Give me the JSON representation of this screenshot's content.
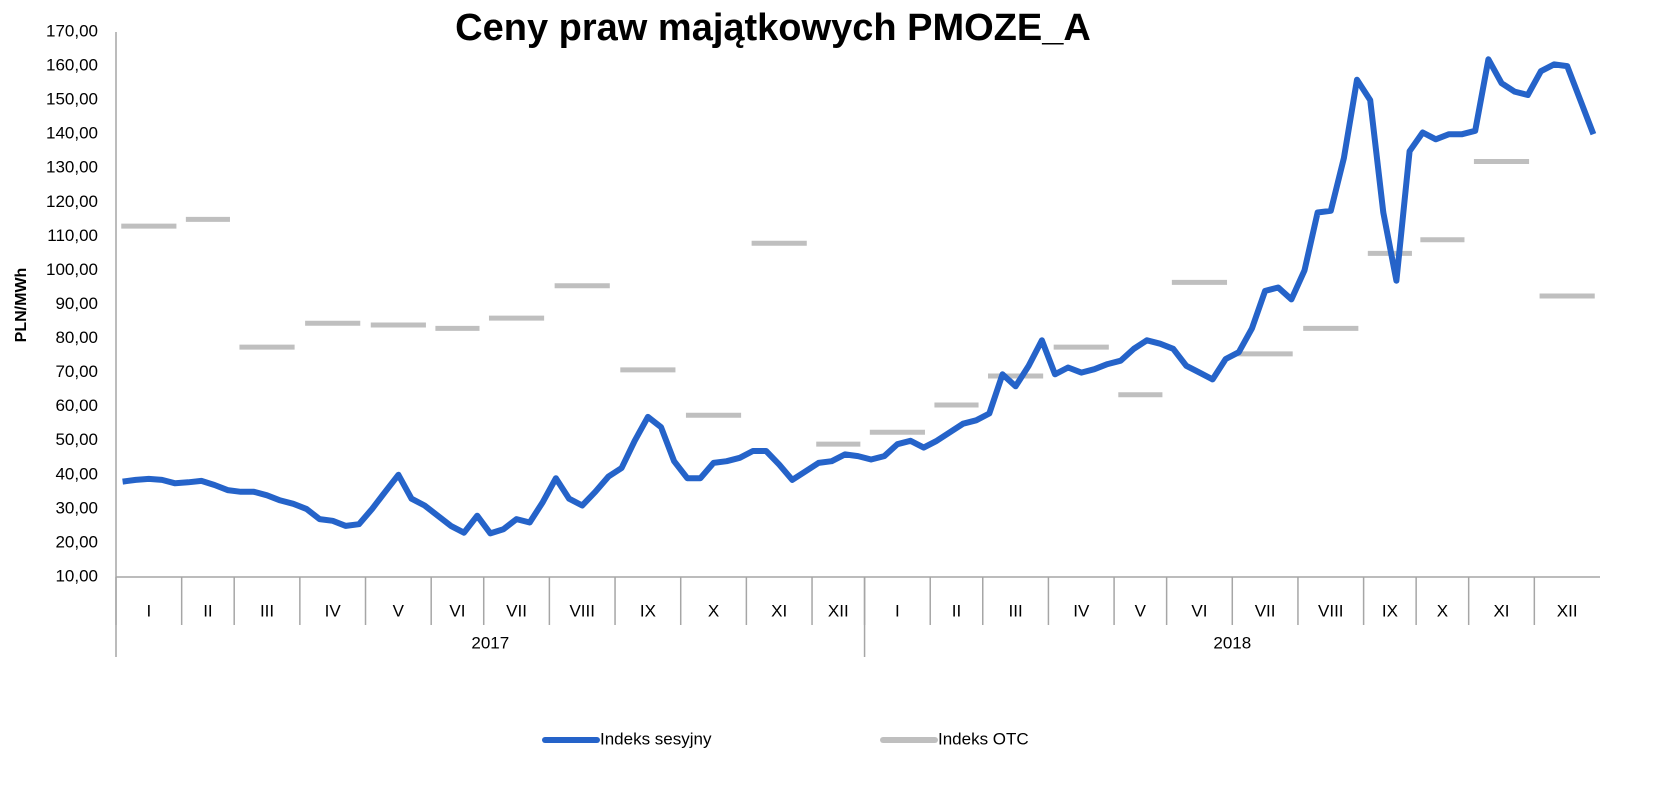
{
  "chart_data": {
    "type": "line",
    "title": "Ceny praw majątkowych PMOZE_A",
    "y_label": "PLN/MWh",
    "ylim": [
      10,
      170
    ],
    "yticks": [
      {
        "value": 10,
        "label": "10,00"
      },
      {
        "value": 20,
        "label": "20,00"
      },
      {
        "value": 30,
        "label": "30,00"
      },
      {
        "value": 40,
        "label": "40,00"
      },
      {
        "value": 50,
        "label": "50,00"
      },
      {
        "value": 60,
        "label": "60,00"
      },
      {
        "value": 70,
        "label": "70,00"
      },
      {
        "value": 80,
        "label": "80,00"
      },
      {
        "value": 90,
        "label": "90,00"
      },
      {
        "value": 100,
        "label": "100,00"
      },
      {
        "value": 110,
        "label": "110,00"
      },
      {
        "value": 120,
        "label": "120,00"
      },
      {
        "value": 130,
        "label": "130,00"
      },
      {
        "value": 140,
        "label": "140,00"
      },
      {
        "value": 150,
        "label": "150,00"
      },
      {
        "value": 160,
        "label": "160,00"
      },
      {
        "value": 170,
        "label": "170,00"
      }
    ],
    "grid": false,
    "series": [
      {
        "name": "Indeks sesyjny",
        "color": "#2563c9"
      },
      {
        "name": "Indeks OTC",
        "color": "#bfbfbf"
      }
    ],
    "years": [
      {
        "label": "2017",
        "months": [
          {
            "label": "I",
            "sesyjny": [
              38,
              38.5,
              38.8,
              38.5,
              37.5
            ],
            "otc": 113
          },
          {
            "label": "II",
            "sesyjny": [
              37.8,
              38.2,
              37,
              35.5
            ],
            "otc": 115
          },
          {
            "label": "III",
            "sesyjny": [
              35,
              35,
              34,
              32.5,
              31.5
            ],
            "otc": 77.5
          },
          {
            "label": "IV",
            "sesyjny": [
              30,
              27,
              26.5,
              25,
              25.5
            ],
            "otc": 84.5
          },
          {
            "label": "V",
            "sesyjny": [
              30,
              35,
              40,
              33,
              31
            ],
            "otc": 84
          },
          {
            "label": "VI",
            "sesyjny": [
              28,
              25,
              23,
              28
            ],
            "otc": 83
          },
          {
            "label": "VII",
            "sesyjny": [
              22.8,
              24,
              27,
              26,
              32
            ],
            "otc": 86
          },
          {
            "label": "VIII",
            "sesyjny": [
              39,
              33,
              31,
              35,
              39.5
            ],
            "otc": 95.5
          },
          {
            "label": "IX",
            "sesyjny": [
              42,
              50,
              57,
              54,
              44
            ],
            "otc": 70.8
          },
          {
            "label": "X",
            "sesyjny": [
              39,
              39,
              43.5,
              44,
              45
            ],
            "otc": 57.5
          },
          {
            "label": "XI",
            "sesyjny": [
              47,
              47,
              43,
              38.5,
              41
            ],
            "otc": 108
          },
          {
            "label": "XII",
            "sesyjny": [
              43.5,
              44,
              46,
              45.5
            ],
            "otc": 49
          }
        ]
      },
      {
        "label": "2018",
        "months": [
          {
            "label": "I",
            "sesyjny": [
              44.5,
              45.5,
              49,
              50,
              48
            ],
            "otc": 52.5
          },
          {
            "label": "II",
            "sesyjny": [
              50,
              52.5,
              55,
              56
            ],
            "otc": 60.5
          },
          {
            "label": "III",
            "sesyjny": [
              58,
              69.5,
              66,
              72,
              79.5
            ],
            "otc": 69
          },
          {
            "label": "IV",
            "sesyjny": [
              69.5,
              71.5,
              70,
              71,
              72.5
            ],
            "otc": 77.5
          },
          {
            "label": "V",
            "sesyjny": [
              73.5,
              77,
              79.5,
              78.5
            ],
            "otc": 63.5
          },
          {
            "label": "VI",
            "sesyjny": [
              77,
              72,
              70,
              68,
              74
            ],
            "otc": 96.5
          },
          {
            "label": "VII",
            "sesyjny": [
              76,
              83,
              94,
              95,
              91.5
            ],
            "otc": 75.5
          },
          {
            "label": "VIII",
            "sesyjny": [
              100,
              117,
              117.5,
              133,
              156
            ],
            "otc": 83
          },
          {
            "label": "IX",
            "sesyjny": [
              150,
              117,
              97,
              135
            ],
            "otc": 105
          },
          {
            "label": "X",
            "sesyjny": [
              140.5,
              138.5,
              140,
              140
            ],
            "otc": 109
          },
          {
            "label": "XI",
            "sesyjny": [
              141,
              162,
              155,
              152.5,
              151.5
            ],
            "otc": 132
          },
          {
            "label": "XII",
            "sesyjny": [
              158.5,
              160.5,
              160,
              150,
              140
            ],
            "otc": 92.5
          }
        ]
      }
    ]
  }
}
